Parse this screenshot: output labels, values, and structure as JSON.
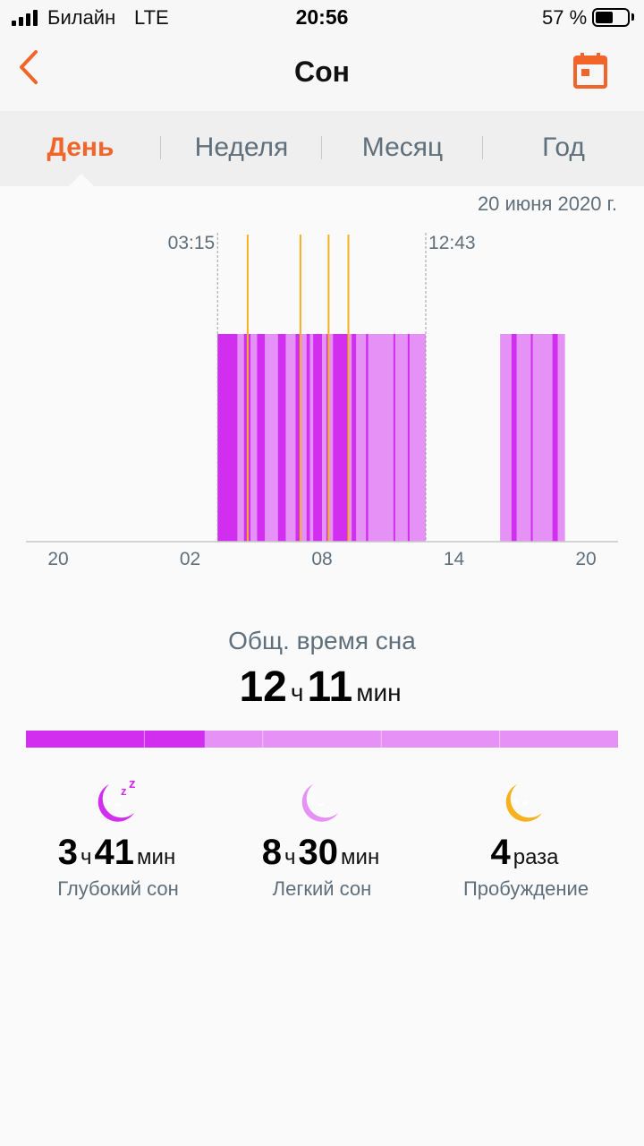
{
  "status_bar": {
    "carrier": "Билайн",
    "network": "LTE",
    "time": "20:56",
    "battery": "57 %",
    "battery_level": 0.57
  },
  "header": {
    "title": "Сон",
    "back_icon": "chevron-left-icon",
    "calendar_icon": "calendar-icon"
  },
  "tabs": [
    {
      "label": "День",
      "active": true
    },
    {
      "label": "Неделя",
      "active": false
    },
    {
      "label": "Месяц",
      "active": false
    },
    {
      "label": "Год",
      "active": false
    }
  ],
  "colors": {
    "accent": "#f2652a",
    "deep_sleep": "#d12ef0",
    "light_sleep": "#e591f5",
    "awake": "#f5b21e"
  },
  "chart_data": {
    "type": "bar",
    "date": "20 июня 2020 г.",
    "x_unit": "hour",
    "x_ticks": [
      20,
      26,
      32,
      38,
      44
    ],
    "tick_labels": [
      "20",
      "02",
      "08",
      "14",
      "20"
    ],
    "xlim": [
      20,
      47
    ],
    "range_labels": {
      "start": "03:15",
      "end": "12:43"
    },
    "range": [
      27.25,
      36.72
    ],
    "sessions": [
      {
        "start": 27.25,
        "end": 36.72
      },
      {
        "start": 40.1,
        "end": 43.05
      }
    ],
    "deep_sleep": [
      [
        27.25,
        28.15
      ],
      [
        28.45,
        28.75
      ],
      [
        29.05,
        29.4
      ],
      [
        30.0,
        30.35
      ],
      [
        30.8,
        31.05
      ],
      [
        31.3,
        31.45
      ],
      [
        31.6,
        32.0
      ],
      [
        32.2,
        32.3
      ],
      [
        32.5,
        33.2
      ],
      [
        33.35,
        33.55
      ],
      [
        34.0,
        34.1
      ],
      [
        35.25,
        35.32
      ],
      [
        35.9,
        35.98
      ],
      [
        40.62,
        40.85
      ],
      [
        41.5,
        41.56
      ],
      [
        42.48,
        42.72
      ]
    ],
    "awakenings": [
      28.62,
      31.02,
      32.3,
      33.2
    ],
    "series": [
      {
        "name": "Глубокий сон",
        "color": "#d12ef0"
      },
      {
        "name": "Легкий сон",
        "color": "#e591f5"
      },
      {
        "name": "Пробуждение",
        "color": "#f5b21e"
      }
    ]
  },
  "summary": {
    "label": "Общ. время сна",
    "hours": "12",
    "hours_unit": "ч",
    "minutes": "11",
    "minutes_unit": "мин",
    "deep_fraction": 0.302
  },
  "stats": [
    {
      "icon": "moon-zzz-icon",
      "hours": "3",
      "hours_unit": "ч",
      "minutes": "41",
      "minutes_unit": "мин",
      "label": "Глубокий сон"
    },
    {
      "icon": "moon-icon",
      "hours": "8",
      "hours_unit": "ч",
      "minutes": "30",
      "minutes_unit": "мин",
      "label": "Легкий сон"
    },
    {
      "icon": "moon-awake-icon",
      "count": "4",
      "count_unit": "раза",
      "label": "Пробуждение"
    }
  ]
}
